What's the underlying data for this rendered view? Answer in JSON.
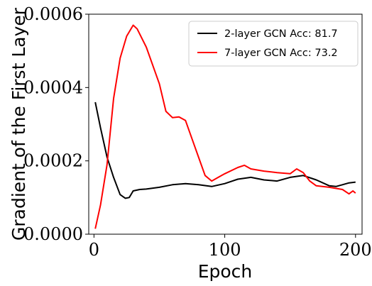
{
  "chart_data": {
    "type": "line",
    "xlabel": "Epoch",
    "ylabel": "Gradient of the First Layer",
    "xlim": [
      -4,
      205
    ],
    "ylim": [
      0,
      0.0006
    ],
    "xticks": [
      0,
      100,
      200
    ],
    "xtick_labels": [
      "0",
      "100",
      "200"
    ],
    "yticks": [
      0,
      0.0002,
      0.0004,
      0.0006
    ],
    "ytick_labels": [
      "0.0000",
      "0.0002",
      "0.0004",
      "0.0006"
    ],
    "grid": false,
    "legend_position": "top-right",
    "series": [
      {
        "name": "2-layer GCN Acc: 81.7",
        "color": "#000000",
        "x": [
          1,
          5,
          10,
          15,
          20,
          24,
          27,
          30,
          35,
          40,
          50,
          60,
          70,
          80,
          90,
          100,
          110,
          120,
          130,
          140,
          150,
          160,
          170,
          180,
          185,
          190,
          195,
          200
        ],
        "y": [
          0.00036,
          0.00029,
          0.00021,
          0.000155,
          0.000108,
          9.8e-05,
          0.0001,
          0.000118,
          0.000122,
          0.000123,
          0.000128,
          0.000135,
          0.000138,
          0.000135,
          0.00013,
          0.000138,
          0.00015,
          0.000155,
          0.000148,
          0.000145,
          0.000155,
          0.00016,
          0.000148,
          0.000132,
          0.00013,
          0.000135,
          0.00014,
          0.000142
        ]
      },
      {
        "name": "7-layer GCN Acc: 73.2",
        "color": "#ff0000",
        "x": [
          1,
          5,
          10,
          15,
          20,
          25,
          30,
          33,
          40,
          50,
          55,
          60,
          65,
          70,
          75,
          80,
          85,
          90,
          95,
          100,
          110,
          115,
          120,
          130,
          140,
          150,
          155,
          160,
          165,
          170,
          180,
          190,
          195,
          198,
          200
        ],
        "y": [
          1.5e-05,
          8e-05,
          0.00019,
          0.00037,
          0.00048,
          0.00054,
          0.00057,
          0.00056,
          0.00051,
          0.00041,
          0.000335,
          0.000318,
          0.00032,
          0.00031,
          0.00026,
          0.00021,
          0.00016,
          0.000145,
          0.000155,
          0.000165,
          0.000182,
          0.000188,
          0.000178,
          0.000172,
          0.000168,
          0.000165,
          0.000178,
          0.000168,
          0.000145,
          0.000132,
          0.000128,
          0.000122,
          0.00011,
          0.000118,
          0.000112
        ]
      }
    ]
  }
}
